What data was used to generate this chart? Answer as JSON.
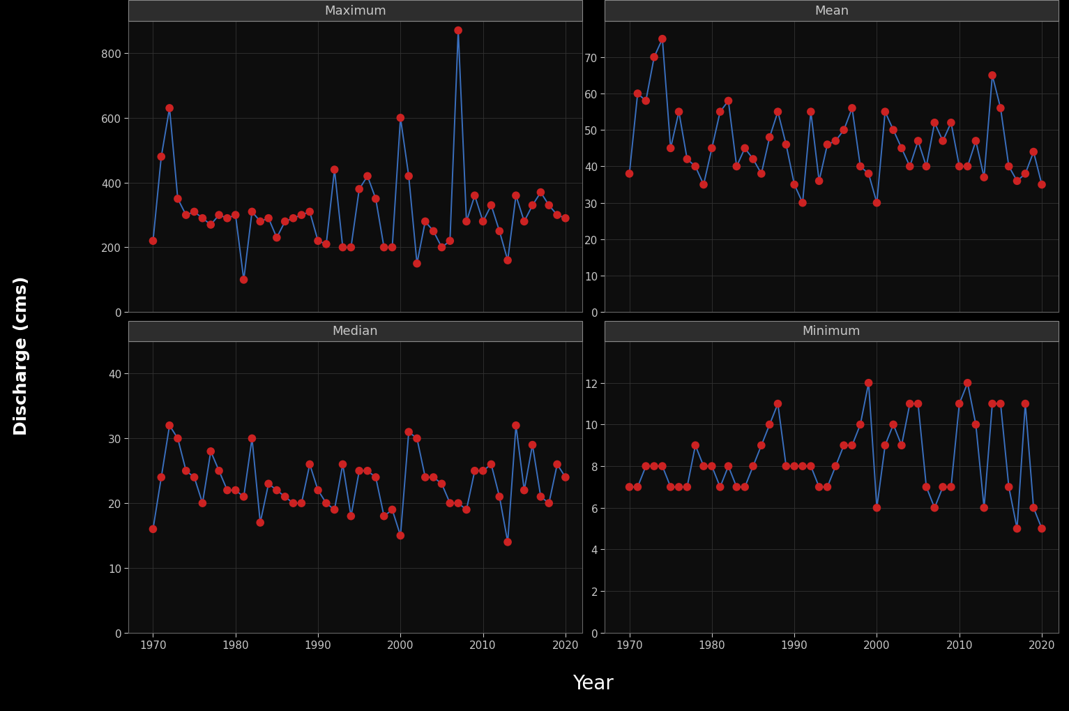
{
  "years": [
    1970,
    1971,
    1972,
    1973,
    1974,
    1975,
    1976,
    1977,
    1978,
    1979,
    1980,
    1981,
    1982,
    1983,
    1984,
    1985,
    1986,
    1987,
    1988,
    1989,
    1990,
    1991,
    1992,
    1993,
    1994,
    1995,
    1996,
    1997,
    1998,
    1999,
    2000,
    2001,
    2002,
    2003,
    2004,
    2005,
    2006,
    2007,
    2008,
    2009,
    2010,
    2011,
    2012,
    2013,
    2014,
    2015,
    2016,
    2017,
    2018,
    2019,
    2020
  ],
  "maximum": [
    220,
    480,
    630,
    350,
    300,
    310,
    290,
    270,
    300,
    290,
    300,
    100,
    310,
    280,
    290,
    230,
    280,
    290,
    300,
    310,
    220,
    210,
    440,
    200,
    200,
    380,
    420,
    350,
    200,
    200,
    600,
    420,
    150,
    280,
    250,
    200,
    220,
    870,
    280,
    360,
    280,
    330,
    250,
    160,
    360,
    280,
    330,
    370,
    330,
    300,
    290
  ],
  "mean": [
    38,
    60,
    58,
    70,
    75,
    45,
    55,
    42,
    40,
    35,
    45,
    55,
    58,
    40,
    45,
    42,
    38,
    48,
    55,
    46,
    35,
    30,
    55,
    36,
    46,
    47,
    50,
    56,
    40,
    38,
    30,
    55,
    50,
    45,
    40,
    47,
    40,
    52,
    47,
    52,
    40,
    40,
    47,
    37,
    65,
    56,
    40,
    36,
    38,
    44,
    35
  ],
  "median": [
    16,
    24,
    32,
    30,
    25,
    24,
    20,
    28,
    25,
    22,
    22,
    21,
    30,
    17,
    23,
    22,
    21,
    20,
    20,
    26,
    22,
    20,
    19,
    26,
    18,
    25,
    25,
    24,
    18,
    19,
    15,
    31,
    30,
    24,
    24,
    23,
    20,
    20,
    19,
    25,
    25,
    26,
    21,
    14,
    32,
    22,
    29,
    21,
    20,
    26,
    24
  ],
  "minimum": [
    7,
    7,
    8,
    8,
    8,
    7,
    7,
    7,
    9,
    8,
    8,
    7,
    8,
    7,
    7,
    8,
    9,
    10,
    11,
    8,
    8,
    8,
    8,
    7,
    7,
    8,
    9,
    9,
    10,
    12,
    6,
    9,
    10,
    9,
    11,
    11,
    7,
    6,
    7,
    7,
    11,
    12,
    10,
    6,
    11,
    11,
    7,
    5,
    11,
    6,
    5
  ],
  "line_color": "#3a6fbe",
  "dot_color": "#cc2222",
  "bg_color": "#000000",
  "plot_bg_color": "#0d0d0d",
  "title_bg_color": "#2d2d2d",
  "title_border_color": "#888888",
  "grid_color": "#333333",
  "text_color": "#c8c8c8",
  "xlabel": "Year",
  "ylabel": "Discharge (cms)",
  "subplots": [
    "Maximum",
    "Mean",
    "Median",
    "Minimum"
  ],
  "ylims": {
    "Maximum": [
      0,
      900
    ],
    "Mean": [
      0,
      80
    ],
    "Median": [
      0,
      45
    ],
    "Minimum": [
      0,
      14
    ]
  },
  "yticks": {
    "Maximum": [
      0,
      200,
      400,
      600,
      800
    ],
    "Mean": [
      0,
      10,
      20,
      30,
      40,
      50,
      60,
      70
    ],
    "Median": [
      0,
      10,
      20,
      30,
      40
    ],
    "Minimum": [
      0,
      2,
      4,
      6,
      8,
      10,
      12
    ]
  },
  "xlim": [
    1967,
    2022
  ],
  "xticks": [
    1970,
    1980,
    1990,
    2000,
    2010,
    2020
  ]
}
